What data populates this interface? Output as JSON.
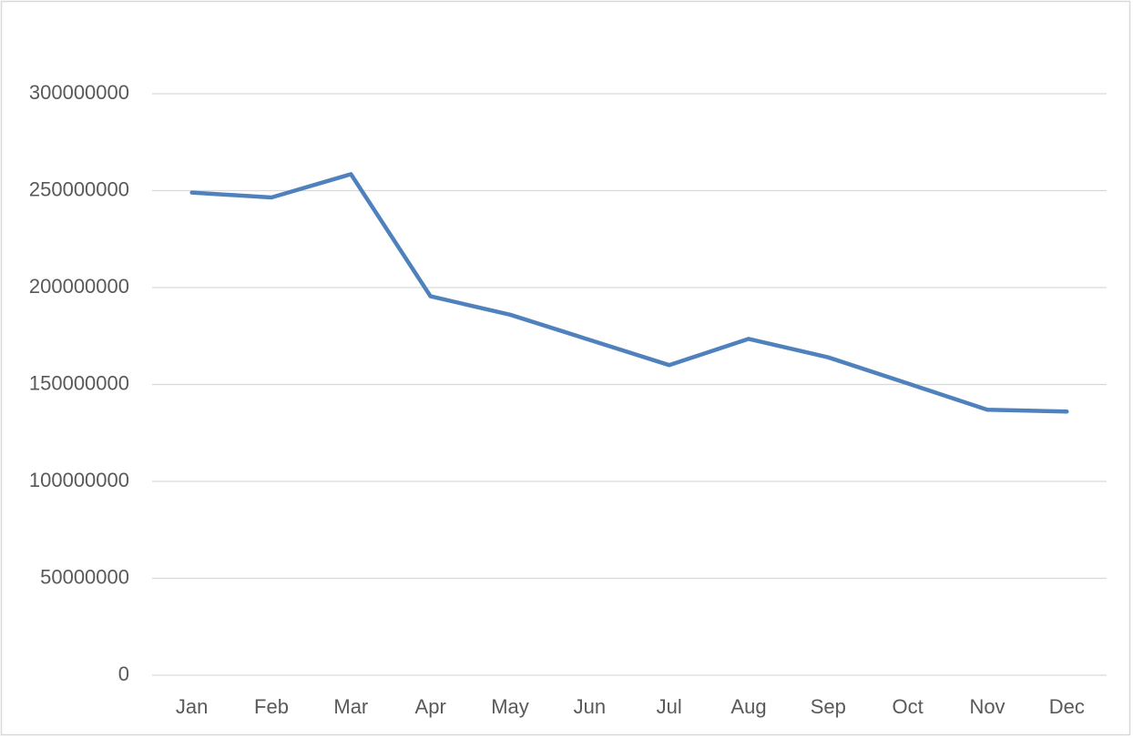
{
  "chart_data": {
    "type": "line",
    "categories": [
      "Jan",
      "Feb",
      "Mar",
      "Apr",
      "May",
      "Jun",
      "Jul",
      "Aug",
      "Sep",
      "Oct",
      "Nov",
      "Dec"
    ],
    "values": [
      249000000,
      246500000,
      258500000,
      195500000,
      186000000,
      173000000,
      160000000,
      173500000,
      164000000,
      150500000,
      137000000,
      136000000
    ],
    "color": "#4f81bd",
    "ylim": [
      0,
      300000000
    ],
    "yticks": [
      0,
      50000000,
      100000000,
      150000000,
      200000000,
      250000000,
      300000000
    ],
    "grid": true
  }
}
